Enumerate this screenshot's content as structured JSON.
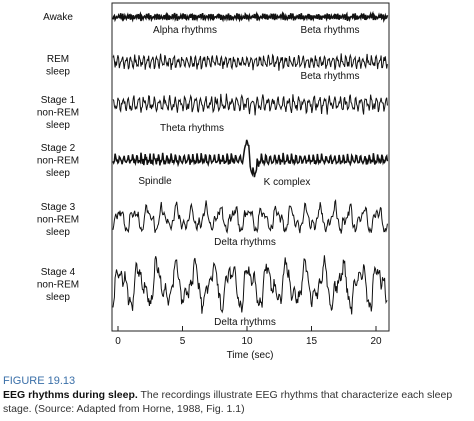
{
  "figure": {
    "rows": [
      {
        "label": [
          "Awake"
        ],
        "annotations": [
          "Alpha rhythms",
          "Beta rhythms"
        ]
      },
      {
        "label": [
          "REM",
          "sleep"
        ],
        "annotations": [
          "Beta rhythms"
        ]
      },
      {
        "label": [
          "Stage 1",
          "non-REM",
          "sleep"
        ],
        "annotations": [
          "Theta rhythms"
        ]
      },
      {
        "label": [
          "Stage 2",
          "non-REM",
          "sleep"
        ],
        "annotations": [
          "Spindle",
          "K complex"
        ]
      },
      {
        "label": [
          "Stage 3",
          "non-REM",
          "sleep"
        ],
        "annotations": [
          "Delta rhythms"
        ]
      },
      {
        "label": [
          "Stage 4",
          "non-REM",
          "sleep"
        ],
        "annotations": [
          "Delta rhythms"
        ]
      }
    ],
    "x_axis": {
      "label": "Time (sec)",
      "xlim": [
        0,
        21
      ],
      "xticks": [
        0,
        5,
        10,
        15,
        20
      ]
    }
  },
  "caption": {
    "number": "FIGURE 19.13",
    "title": "EEG rhythms during sleep.",
    "text": "The recordings illustrate EEG rhythms that characterize each sleep stage. (Source: Adapted from Horne, 1988, Fig. 1.1)"
  }
}
